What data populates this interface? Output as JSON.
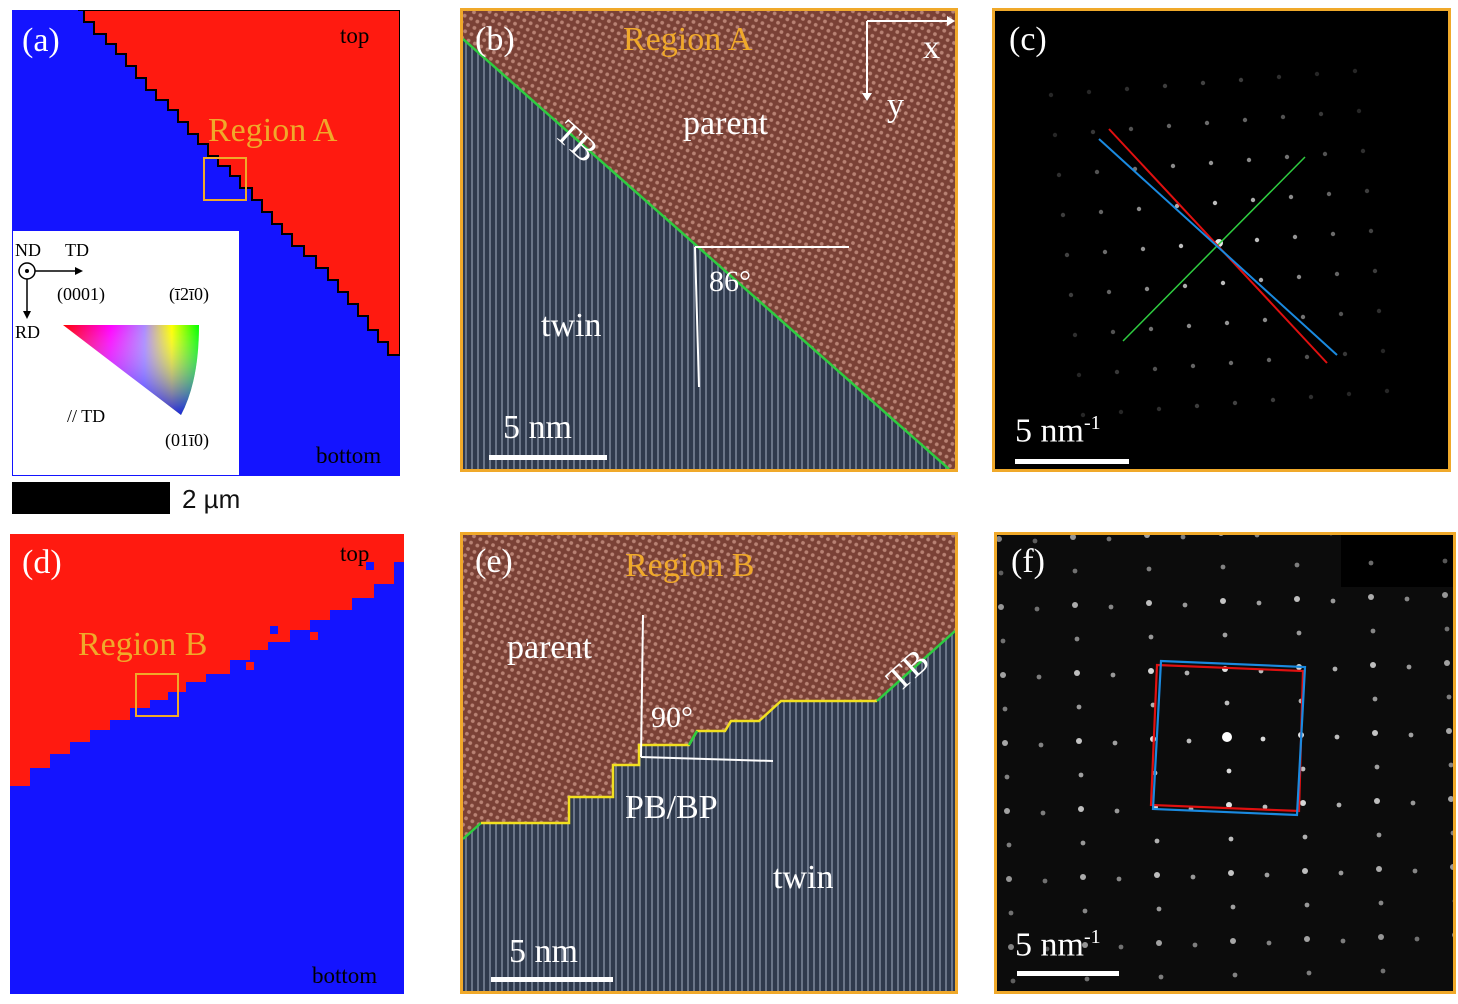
{
  "colors": {
    "parent_red": "#ff1a10",
    "twin_blue": "#1414ff",
    "frame_orange": "#f0a92a",
    "tb_green": "#2ecc40",
    "pb_yellow": "#f2e020"
  },
  "panel_a": {
    "label": "(a)",
    "top": "top",
    "bottom": "bottom",
    "region": "Region A",
    "key": {
      "nd": "ND",
      "td": "TD",
      "rd": "RD",
      "pole1": "(0001)",
      "pole2": "(ī2ī0)",
      "pole3": "(01ī0)",
      "axis": "// TD"
    }
  },
  "scalebar_a": {
    "text": "2 µm"
  },
  "panel_b": {
    "label": "(b)",
    "region": "Region A",
    "x": "x",
    "y": "y",
    "tb": "TB",
    "parent": "parent",
    "twin": "twin",
    "angle": "86°",
    "scale": "5 nm"
  },
  "panel_c": {
    "label": "(c)",
    "scale": "5 nm",
    "scale_sup": "-1"
  },
  "panel_d": {
    "label": "(d)",
    "top": "top",
    "bottom": "bottom",
    "region": "Region B"
  },
  "panel_e": {
    "label": "(e)",
    "region": "Region B",
    "parent": "parent",
    "tb": "TB",
    "angle": "90°",
    "pbbp": "PB/BP",
    "twin": "twin",
    "scale": "5 nm"
  },
  "panel_f": {
    "label": "(f)",
    "scale": "5 nm",
    "scale_sup": "-1"
  }
}
